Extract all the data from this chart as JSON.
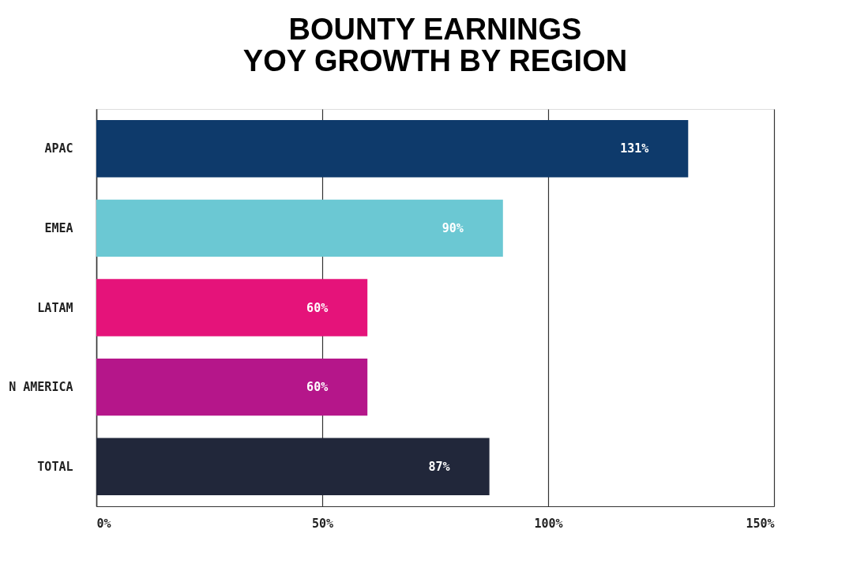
{
  "chart_data": {
    "type": "bar",
    "orientation": "horizontal",
    "title": "BOUNTY EARNINGS\nYOY GROWTH BY REGION",
    "categories": [
      "APAC",
      "EMEA",
      "LATAM",
      "N AMERICA",
      "TOTAL"
    ],
    "values": [
      131,
      90,
      60,
      60,
      87
    ],
    "colors": [
      "#0e3a6b",
      "#6bc8d3",
      "#e5137a",
      "#b5168a",
      "#21273a"
    ],
    "value_labels": [
      "131%",
      "90%",
      "60%",
      "60%",
      "87%"
    ],
    "xlim": [
      0,
      150
    ],
    "xticks": [
      {
        "value": 0,
        "label": "0%"
      },
      {
        "value": 50,
        "label": "50%"
      },
      {
        "value": 100,
        "label": "100%"
      },
      {
        "value": 150,
        "label": "150%"
      }
    ],
    "grid": "x"
  }
}
